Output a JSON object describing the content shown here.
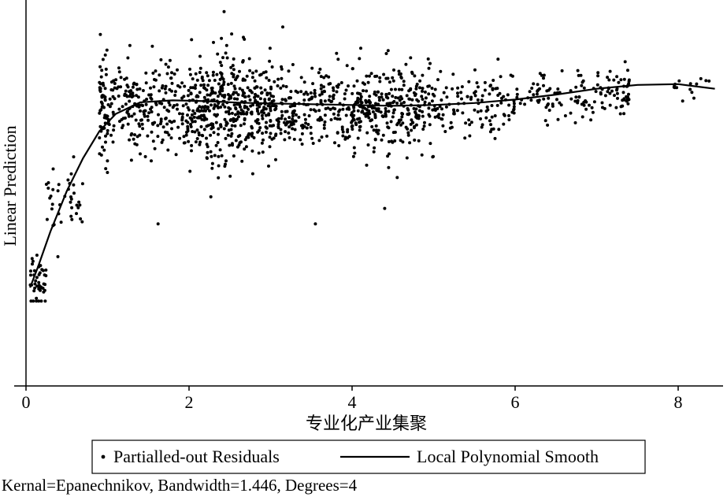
{
  "chart_data": {
    "type": "scatter",
    "xlabel": "专业化产业集聚",
    "ylabel": "Linear Prediction",
    "xlim": [
      0,
      8.5
    ],
    "x_ticks": [
      0,
      2,
      4,
      6,
      8
    ],
    "y_ticks_shown": false,
    "grid": false,
    "legend_position": "bottom",
    "note": "Kernal=Epanechnikov, Bandwidth=1.446, Degrees=4",
    "series": [
      {
        "name": "Partialled-out Residuals",
        "kind": "points",
        "color": "#000000",
        "clusters": [
          {
            "x_min": 0.05,
            "x_max": 0.25,
            "y_center": 0.28,
            "y_spread": 0.07,
            "count": 45
          },
          {
            "x_min": 0.25,
            "x_max": 0.7,
            "y_center": 0.48,
            "y_spread": 0.09,
            "count": 40
          },
          {
            "x_min": 0.9,
            "x_max": 1.0,
            "y_center": 0.72,
            "y_spread": 0.15,
            "count": 60
          },
          {
            "x_min": 1.0,
            "x_max": 2.0,
            "y_center": 0.72,
            "y_spread": 0.12,
            "count": 230
          },
          {
            "x_min": 2.0,
            "x_max": 3.0,
            "y_center": 0.72,
            "y_spread": 0.14,
            "count": 420
          },
          {
            "x_min": 3.0,
            "x_max": 4.0,
            "y_center": 0.72,
            "y_spread": 0.1,
            "count": 230
          },
          {
            "x_min": 4.0,
            "x_max": 5.0,
            "y_center": 0.72,
            "y_spread": 0.11,
            "count": 300
          },
          {
            "x_min": 5.0,
            "x_max": 6.0,
            "y_center": 0.73,
            "y_spread": 0.08,
            "count": 120
          },
          {
            "x_min": 6.0,
            "x_max": 7.0,
            "y_center": 0.75,
            "y_spread": 0.06,
            "count": 80
          },
          {
            "x_min": 7.0,
            "x_max": 7.4,
            "y_center": 0.77,
            "y_spread": 0.06,
            "count": 55
          },
          {
            "x_min": 7.9,
            "x_max": 8.45,
            "y_center": 0.78,
            "y_spread": 0.03,
            "count": 15
          }
        ],
        "outliers": [
          [
            2.43,
            0.97
          ],
          [
            3.15,
            0.93
          ],
          [
            1.55,
            0.88
          ],
          [
            1.25,
            0.85
          ],
          [
            2.3,
            0.89
          ],
          [
            2.35,
            0.86
          ],
          [
            2.47,
            0.85
          ],
          [
            2.55,
            0.82
          ],
          [
            7.35,
            0.84
          ],
          [
            3.55,
            0.42
          ],
          [
            1.62,
            0.42
          ],
          [
            4.4,
            0.46
          ]
        ]
      },
      {
        "name": "Local Polynomial Smooth",
        "kind": "line",
        "color": "#000000",
        "x": [
          0.05,
          0.15,
          0.3,
          0.5,
          0.7,
          0.9,
          1.1,
          1.4,
          1.8,
          2.2,
          2.6,
          3.0,
          3.5,
          4.0,
          4.5,
          5.0,
          5.5,
          6.0,
          6.5,
          7.0,
          7.5,
          8.0,
          8.45
        ],
        "y": [
          0.255,
          0.31,
          0.4,
          0.505,
          0.59,
          0.66,
          0.705,
          0.735,
          0.74,
          0.738,
          0.734,
          0.732,
          0.73,
          0.728,
          0.726,
          0.728,
          0.733,
          0.742,
          0.755,
          0.77,
          0.78,
          0.782,
          0.77
        ]
      }
    ]
  }
}
